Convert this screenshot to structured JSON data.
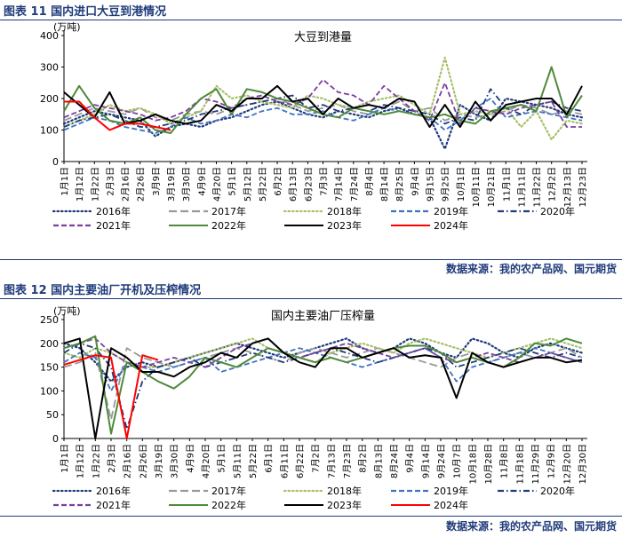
{
  "sections": [
    {
      "header": "图表 11  国内进口大豆到港情况",
      "source": "数据来源：我的农产品网、国元期货",
      "chart_data": {
        "type": "line",
        "title": "大豆到港量",
        "unit": "(万吨)",
        "ylim": [
          0,
          400
        ],
        "yticks": [
          0,
          100,
          200,
          300,
          400
        ],
        "xticks": [
          "1月1日",
          "1月12日",
          "1月22日",
          "2月3日",
          "2月16日",
          "2月26日",
          "3月9日",
          "3月19日",
          "3月30日",
          "4月9日",
          "4月20日",
          "5月1日",
          "5月12日",
          "5月22日",
          "6月2日",
          "6月13日",
          "6月23日",
          "7月3日",
          "7月14日",
          "7月24日",
          "8月4日",
          "8月14日",
          "8月25日",
          "9月4日",
          "9月15日",
          "9月25日",
          "10月1日",
          "10月11日",
          "10月21日",
          "11月1日",
          "11月11日",
          "11月22日",
          "12月2日",
          "12月13日",
          "12月23日"
        ],
        "series": [
          {
            "name": "2016年",
            "color": "#1f3b7a",
            "dash": "dot",
            "values": [
              120,
              140,
              160,
              150,
              140,
              130,
              80,
              110,
              120,
              110,
              130,
              140,
              160,
              180,
              190,
              170,
              150,
              140,
              160,
              150,
              140,
              160,
              170,
              150,
              140,
              40,
              180,
              150,
              130,
              200,
              190,
              180,
              170,
              150,
              140
            ]
          },
          {
            "name": "2017年",
            "color": "#999999",
            "dash": "longdash",
            "values": [
              130,
              150,
              170,
              160,
              150,
              170,
              140,
              130,
              150,
              160,
              150,
              170,
              180,
              190,
              200,
              180,
              160,
              170,
              180,
              160,
              150,
              170,
              190,
              160,
              170,
              130,
              150,
              140,
              150,
              160,
              180,
              170,
              150,
              160,
              150
            ]
          },
          {
            "name": "2018年",
            "color": "#a8c06a",
            "dash": "dot",
            "values": [
              110,
              130,
              150,
              180,
              160,
              170,
              150,
              120,
              140,
              160,
              240,
              200,
              210,
              190,
              180,
              170,
              210,
              200,
              180,
              170,
              190,
              200,
              210,
              180,
              150,
              330,
              150,
              160,
              150,
              170,
              110,
              160,
              70,
              130,
              120
            ]
          },
          {
            "name": "2019年",
            "color": "#3f73c0",
            "dash": "dash",
            "values": [
              100,
              120,
              140,
              130,
              110,
              100,
              90,
              110,
              140,
              120,
              130,
              150,
              140,
              160,
              170,
              150,
              150,
              160,
              140,
              130,
              150,
              170,
              160,
              150,
              140,
              100,
              130,
              170,
              200,
              140,
              150,
              160,
              150,
              140,
              130
            ]
          },
          {
            "name": "2020年",
            "color": "#1f3b7a",
            "dash": "dashdot",
            "values": [
              110,
              130,
              140,
              150,
              130,
              110,
              110,
              120,
              130,
              150,
              160,
              170,
              180,
              190,
              200,
              210,
              170,
              180,
              160,
              170,
              160,
              180,
              170,
              160,
              150,
              120,
              140,
              130,
              230,
              170,
              150,
              180,
              190,
              170,
              160
            ]
          },
          {
            "name": "2021年",
            "color": "#7b3fa0",
            "dash": "dash",
            "values": [
              140,
              160,
              180,
              170,
              160,
              150,
              130,
              140,
              160,
              200,
              190,
              170,
              200,
              210,
              190,
              180,
              200,
              260,
              220,
              210,
              180,
              240,
              200,
              160,
              130,
              250,
              120,
              170,
              160,
              150,
              170,
              180,
              190,
              110,
              110
            ]
          },
          {
            "name": "2022年",
            "color": "#4f8a3a",
            "dash": "solid",
            "values": [
              160,
              240,
              170,
              130,
              120,
              140,
              100,
              90,
              150,
              200,
              230,
              150,
              230,
              220,
              200,
              190,
              170,
              150,
              140,
              170,
              160,
              150,
              160,
              150,
              140,
              150,
              130,
              120,
              160,
              170,
              180,
              160,
              300,
              140,
              210
            ]
          },
          {
            "name": "2023年",
            "color": "#000000",
            "dash": "solid",
            "values": [
              220,
              180,
              140,
              220,
              120,
              130,
              150,
              130,
              120,
              130,
              180,
              160,
              200,
              200,
              240,
              190,
              200,
              150,
              200,
              170,
              180,
              170,
              200,
              190,
              110,
              180,
              110,
              190,
              130,
              180,
              190,
              200,
              200,
              150,
              240
            ]
          },
          {
            "name": "2024年",
            "color": "#ff0000",
            "dash": "solid",
            "values": [
              190,
              190,
              140,
              100,
              120,
              120,
              110,
              100,
              null,
              null,
              null,
              null,
              null,
              null,
              null,
              null,
              null,
              null,
              null,
              null,
              null,
              null,
              null,
              null,
              null,
              null,
              null,
              null,
              null,
              null,
              null,
              null,
              null,
              null,
              null
            ]
          }
        ]
      }
    },
    {
      "header": "图表 12  国内主要油厂开机及压榨情况",
      "source": "数据来源：我的农产品网、国元期货",
      "chart_data": {
        "type": "line",
        "title": "国内主要油厂压榨量",
        "unit": "(万吨)",
        "ylim": [
          0,
          250
        ],
        "yticks": [
          0,
          50,
          100,
          150,
          200,
          250
        ],
        "xticks": [
          "1月1日",
          "1月12日",
          "1月22日",
          "2月3日",
          "2月16日",
          "2月26日",
          "3月19日",
          "3月30日",
          "4月9日",
          "4月20日",
          "5月1日",
          "5月11日",
          "5月22日",
          "6月1日",
          "6月11日",
          "6月22日",
          "7月2日",
          "7月13日",
          "7月23日",
          "8月2日",
          "8月13日",
          "8月24日",
          "9月4日",
          "9月14日",
          "9月24日",
          "10月7日",
          "10月18日",
          "10月28日",
          "11月8日",
          "11月18日",
          "11月29日",
          "12月9日",
          "12月20日",
          "12月30日"
        ],
        "series": [
          {
            "name": "2016年",
            "color": "#1f3b7a",
            "dash": "dot",
            "values": [
              200,
              190,
              160,
              120,
              150,
              160,
              150,
              160,
              170,
              180,
              190,
              200,
              190,
              180,
              170,
              180,
              190,
              200,
              210,
              190,
              180,
              190,
              210,
              200,
              180,
              170,
              210,
              200,
              180,
              170,
              190,
              200,
              190,
              180
            ]
          },
          {
            "name": "2017年",
            "color": "#999999",
            "dash": "longdash",
            "values": [
              150,
              160,
              180,
              40,
              190,
              170,
              160,
              150,
              160,
              170,
              180,
              190,
              180,
              170,
              160,
              180,
              190,
              180,
              170,
              180,
              190,
              180,
              170,
              160,
              150,
              170,
              180,
              160,
              170,
              180,
              170,
              180,
              190,
              170
            ]
          },
          {
            "name": "2018年",
            "color": "#a8c06a",
            "dash": "dot",
            "values": [
              180,
              170,
              190,
              180,
              160,
              150,
              150,
              160,
              170,
              180,
              190,
              200,
              210,
              190,
              180,
              170,
              160,
              180,
              190,
              200,
              190,
              180,
              200,
              210,
              200,
              190,
              180,
              170,
              180,
              190,
              200,
              210,
              200,
              190
            ]
          },
          {
            "name": "2019年",
            "color": "#3f73c0",
            "dash": "dash",
            "values": [
              160,
              180,
              170,
              100,
              160,
              150,
              140,
              150,
              160,
              170,
              140,
              150,
              160,
              170,
              180,
              190,
              180,
              170,
              160,
              150,
              160,
              170,
              180,
              190,
              170,
              120,
              150,
              160,
              170,
              180,
              190,
              180,
              170,
              160
            ]
          },
          {
            "name": "2020年",
            "color": "#1f3b7a",
            "dash": "dashdot",
            "values": [
              180,
              200,
              190,
              150,
              20,
              120,
              150,
              160,
              170,
              150,
              160,
              170,
              180,
              170,
              160,
              170,
              180,
              190,
              180,
              170,
              160,
              170,
              180,
              190,
              180,
              150,
              160,
              170,
              180,
              190,
              180,
              170,
              180,
              170
            ]
          },
          {
            "name": "2021年",
            "color": "#7b3fa0",
            "dash": "dash",
            "values": [
              190,
              200,
              210,
              180,
              160,
              150,
              160,
              170,
              160,
              150,
              170,
              190,
              200,
              210,
              180,
              170,
              180,
              190,
              200,
              190,
              180,
              170,
              180,
              190,
              170,
              160,
              170,
              180,
              170,
              160,
              170,
              180,
              170,
              160
            ]
          },
          {
            "name": "2022年",
            "color": "#4f8a3a",
            "dash": "solid",
            "values": [
              190,
              200,
              215,
              10,
              160,
              140,
              120,
              105,
              130,
              170,
              160,
              150,
              170,
              190,
              180,
              170,
              160,
              170,
              160,
              170,
              180,
              190,
              195,
              195,
              180,
              160,
              170,
              160,
              150,
              170,
              200,
              195,
              210,
              200
            ]
          },
          {
            "name": "2023年",
            "color": "#000000",
            "dash": "solid",
            "values": [
              200,
              210,
              0,
              190,
              170,
              140,
              140,
              130,
              150,
              160,
              180,
              170,
              200,
              210,
              180,
              160,
              150,
              190,
              190,
              170,
              180,
              190,
              170,
              175,
              170,
              85,
              180,
              160,
              150,
              160,
              170,
              170,
              160,
              165
            ]
          },
          {
            "name": "2024年",
            "color": "#ff0000",
            "dash": "solid",
            "values": [
              155,
              165,
              175,
              170,
              0,
              175,
              165,
              null,
              null,
              null,
              null,
              null,
              null,
              null,
              null,
              null,
              null,
              null,
              null,
              null,
              null,
              null,
              null,
              null,
              null,
              null,
              null,
              null,
              null,
              null,
              null,
              null,
              null,
              null
            ]
          }
        ]
      }
    }
  ]
}
